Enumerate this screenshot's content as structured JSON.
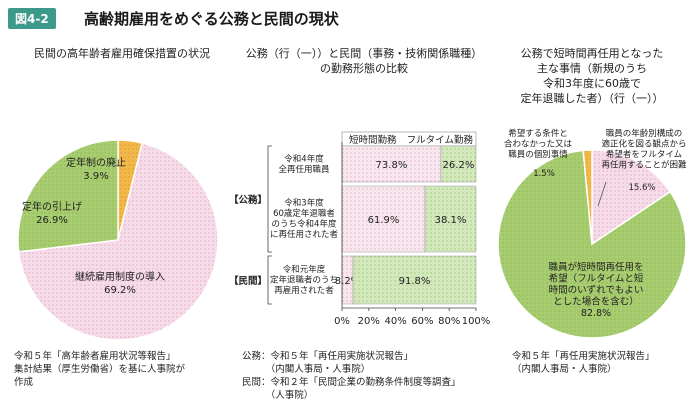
{
  "figure": {
    "number": "図4-2",
    "title": "高齢期雇用をめぐる公務と民間の現状"
  },
  "left_panel": {
    "title": "民間の高年齢者雇用確保措置の状況",
    "source": "令和５年「高年齢者雇用状況等報告」\n集計結果（厚生労働省）を基に人事院が\n作成"
  },
  "middle_panel": {
    "title": "公務（行（一））と民間（事務・技術関係職種）\nの勤務形態の比較",
    "source": "公務：令和５年「再任用実施状況報告」\n　　　（内閣人事局・人事院）\n民間：令和２年「民間企業の勤務条件制度等調査」\n　　　（人事院）"
  },
  "right_panel": {
    "title": "公務で短時間再任用となった\n主な事情（新規のうち\n令和3年度に60歳で\n定年退職した者）（行（一））",
    "source": "令和５年「再任用実施状況報告」\n（内閣人事局・人事院）"
  },
  "chart_data": [
    {
      "type": "pie",
      "slices": [
        {
          "label": "継続雇用制度の導入",
          "value": 69.2,
          "value_label": "69.2%",
          "color": "#f4d6e6"
        },
        {
          "label": "定年の引上げ",
          "value": 26.9,
          "value_label": "26.9%",
          "color": "#a8cc70"
        },
        {
          "label": "定年制の廃止",
          "value": 3.9,
          "value_label": "3.9%",
          "color": "#f2b84b"
        }
      ]
    },
    {
      "type": "bar",
      "orientation": "horizontal",
      "stacked": true,
      "legend": [
        "短時間勤務",
        "フルタイム勤務"
      ],
      "group_labels": [
        "【公務】",
        "【民間】"
      ],
      "categories": [
        "令和4年度\n全再任用職員",
        "令和3年度\n60歳定年退職者\nのうち令和4年度\nに再任用された者",
        "令和元年度\n定年退職者のうち\n再雇用された者"
      ],
      "series": [
        {
          "name": "短時間勤務",
          "values": [
            73.8,
            61.9,
            8.2
          ],
          "labels": [
            "73.8%",
            "61.9%",
            "8.2%"
          ],
          "color": "#f7e6ee"
        },
        {
          "name": "フルタイム勤務",
          "values": [
            26.2,
            38.1,
            91.8
          ],
          "labels": [
            "26.2%",
            "38.1%",
            "91.8%"
          ],
          "color": "#cde4b5"
        }
      ],
      "xlim": [
        0,
        100
      ],
      "xticks": [
        "0%",
        "20%",
        "40%",
        "60%",
        "80%",
        "100%"
      ]
    },
    {
      "type": "pie",
      "slices": [
        {
          "label": "職員が短時間再任用を\n希望（フルタイムと短\n時間のいずれでもよい\nとした場合を含む）",
          "value": 82.8,
          "value_label": "82.8%",
          "color": "#a8cc70"
        },
        {
          "label": "希望する条件と\n合わなかった又は\n職員の個別事情",
          "value": 1.5,
          "value_label": "1.5%",
          "color": "#f2b84b"
        },
        {
          "label": "職員の年齢別構成の\n適正化を図る観点から\n希望者をフルタイム\n再任用することが困難",
          "value": 15.6,
          "value_label": "15.6%",
          "color": "#f4d6e6"
        }
      ]
    }
  ]
}
